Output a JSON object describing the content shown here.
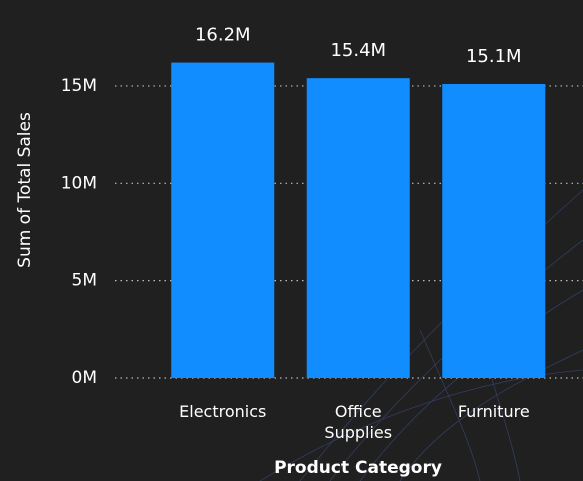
{
  "chart_data": {
    "type": "bar",
    "x_label": "Product Category",
    "y_label": "Sum of Total Sales",
    "categories": [
      "Electronics",
      "Office Supplies",
      "Furniture"
    ],
    "values": [
      16200000,
      15400000,
      15100000
    ],
    "value_labels": [
      "16.2M",
      "15.4M",
      "15.1M"
    ],
    "color": "#118dff",
    "ylim": [
      0,
      17000000
    ],
    "yticks": [
      {
        "value": 0,
        "label": "0M"
      },
      {
        "value": 5000000,
        "label": "5M"
      },
      {
        "value": 10000000,
        "label": "10M"
      },
      {
        "value": 15000000,
        "label": "15M"
      }
    ],
    "grid": true
  }
}
